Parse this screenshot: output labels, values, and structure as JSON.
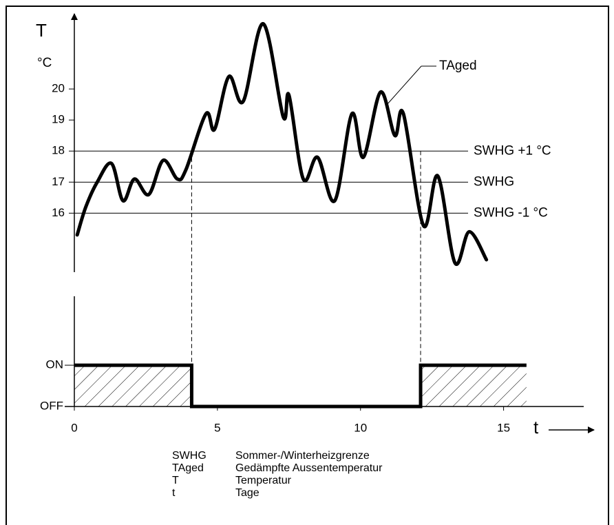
{
  "chart_data": [
    {
      "type": "line",
      "y_label": "T",
      "y_unit": "°C",
      "x": [
        0.1,
        0.4,
        0.8,
        1.3,
        1.7,
        2.1,
        2.6,
        3.1,
        3.6,
        3.9,
        4.6,
        4.9,
        5.4,
        5.9,
        6.6,
        7.3,
        7.5,
        8.0,
        8.5,
        9.1,
        9.7,
        10.1,
        10.7,
        11.2,
        11.5,
        12.2,
        12.7,
        13.3,
        13.8,
        14.4
      ],
      "series": [
        {
          "name": "TAged",
          "color": "#000000",
          "values": [
            15.3,
            16.2,
            17.0,
            17.6,
            16.4,
            17.1,
            16.6,
            17.7,
            17.1,
            17.4,
            19.2,
            18.7,
            20.4,
            19.6,
            22.1,
            19.1,
            19.8,
            17.1,
            17.8,
            16.4,
            19.2,
            17.8,
            19.9,
            18.5,
            19.2,
            15.6,
            17.2,
            14.4,
            15.4,
            14.5
          ]
        }
      ],
      "ylim": [
        14.1,
        22.2
      ],
      "yticks": [
        16,
        17,
        18,
        19,
        20
      ],
      "xlim": [
        0,
        17.8
      ],
      "reference_lines": [
        {
          "value": 18,
          "label": "SWHG +1 °C"
        },
        {
          "value": 17,
          "label": "SWHG"
        },
        {
          "value": 16,
          "label": "SWHG -1 °C"
        }
      ]
    },
    {
      "type": "step",
      "x": [
        0,
        4.1,
        4.1,
        12.1,
        12.1,
        15.8
      ],
      "series": [
        {
          "color": "#000000",
          "values": [
            1,
            1,
            0,
            0,
            1,
            1
          ]
        }
      ],
      "ylim": [
        0,
        2.67
      ],
      "yticks": [
        {
          "value": 0,
          "label": "OFF"
        },
        {
          "value": 1,
          "label": "ON"
        }
      ],
      "xlim": [
        0,
        17.8
      ],
      "xticks": [
        0,
        5,
        10,
        15
      ],
      "x_label": "t"
    }
  ],
  "legend": [
    {
      "term": "SWHG",
      "description": "Sommer-/Winterheizgrenze"
    },
    {
      "term": "TAged",
      "description": "Gedämpfte Aussentemperatur"
    },
    {
      "term": "T",
      "description": "Temperatur"
    },
    {
      "term": "t",
      "description": "Tage"
    }
  ]
}
